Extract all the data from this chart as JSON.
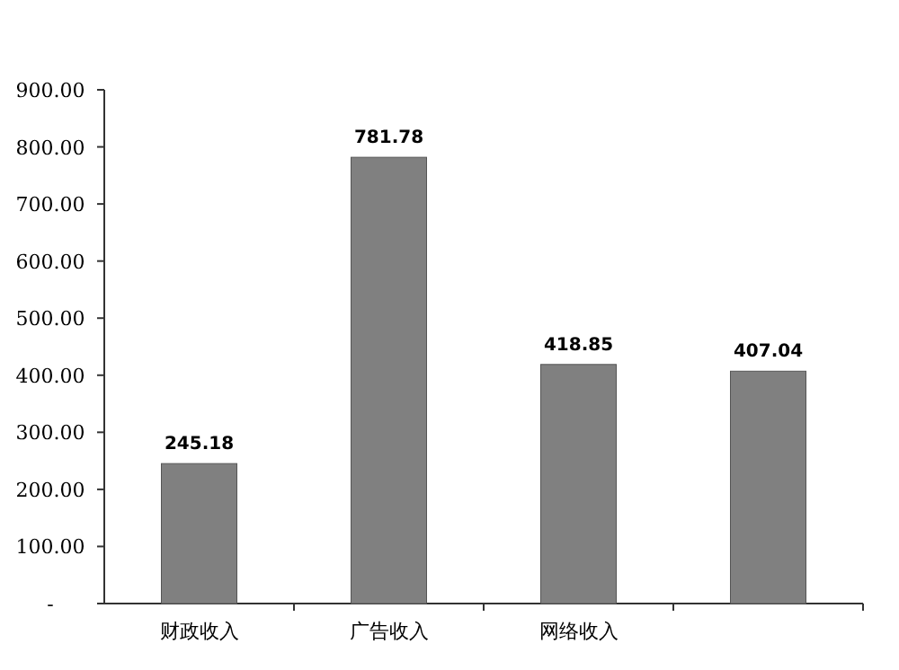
{
  "chart_data": {
    "type": "bar",
    "categories": [
      "财政收入",
      "广告收入",
      "网络收入",
      null
    ],
    "values": [
      245.18,
      781.78,
      418.85,
      407.04
    ],
    "color": "#808080",
    "ylim": [
      0,
      900
    ],
    "yticks": [
      {
        "value": 0,
        "label": "-"
      },
      {
        "value": 100,
        "label": "100.00"
      },
      {
        "value": 200,
        "label": "200.00"
      },
      {
        "value": 300,
        "label": "300.00"
      },
      {
        "value": 400,
        "label": "400.00"
      },
      {
        "value": 500,
        "label": "500.00"
      },
      {
        "value": 600,
        "label": "600.00"
      },
      {
        "value": 700,
        "label": "700.00"
      },
      {
        "value": 800,
        "label": "800.00"
      },
      {
        "value": 900,
        "label": "900.00"
      }
    ],
    "data_labels": true
  }
}
